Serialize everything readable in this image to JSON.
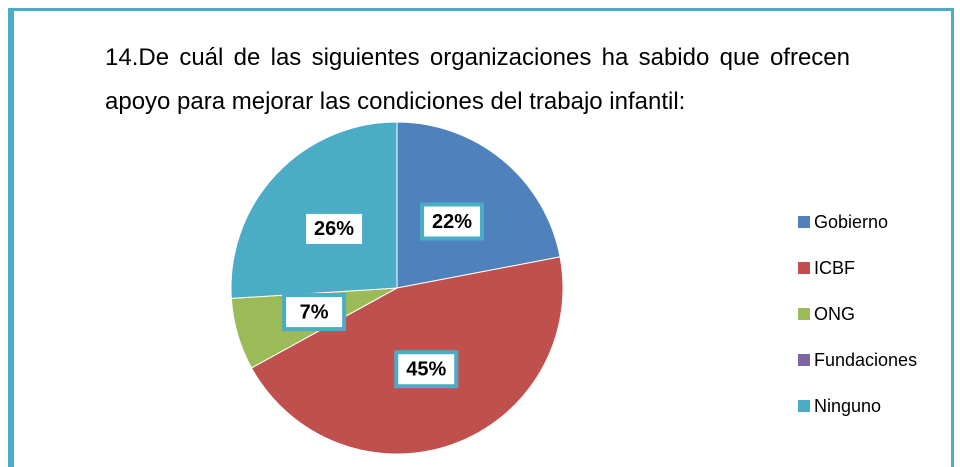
{
  "chart_data": {
    "type": "pie",
    "title": "14.De cuál de las siguientes organizaciones ha sabido que ofrecen apoyo para mejorar las condiciones del trabajo infantil:",
    "categories": [
      "Gobierno",
      "ICBF",
      "ONG",
      "Fundaciones",
      "Ninguno"
    ],
    "values": [
      22,
      45,
      7,
      0,
      26
    ],
    "value_labels": [
      "22%",
      "45%",
      "7%",
      null,
      "26%"
    ],
    "colors": [
      "#4f81bd",
      "#c0504d",
      "#9bbb59",
      "#8064a2",
      "#4bacc6"
    ],
    "legend": "right"
  }
}
